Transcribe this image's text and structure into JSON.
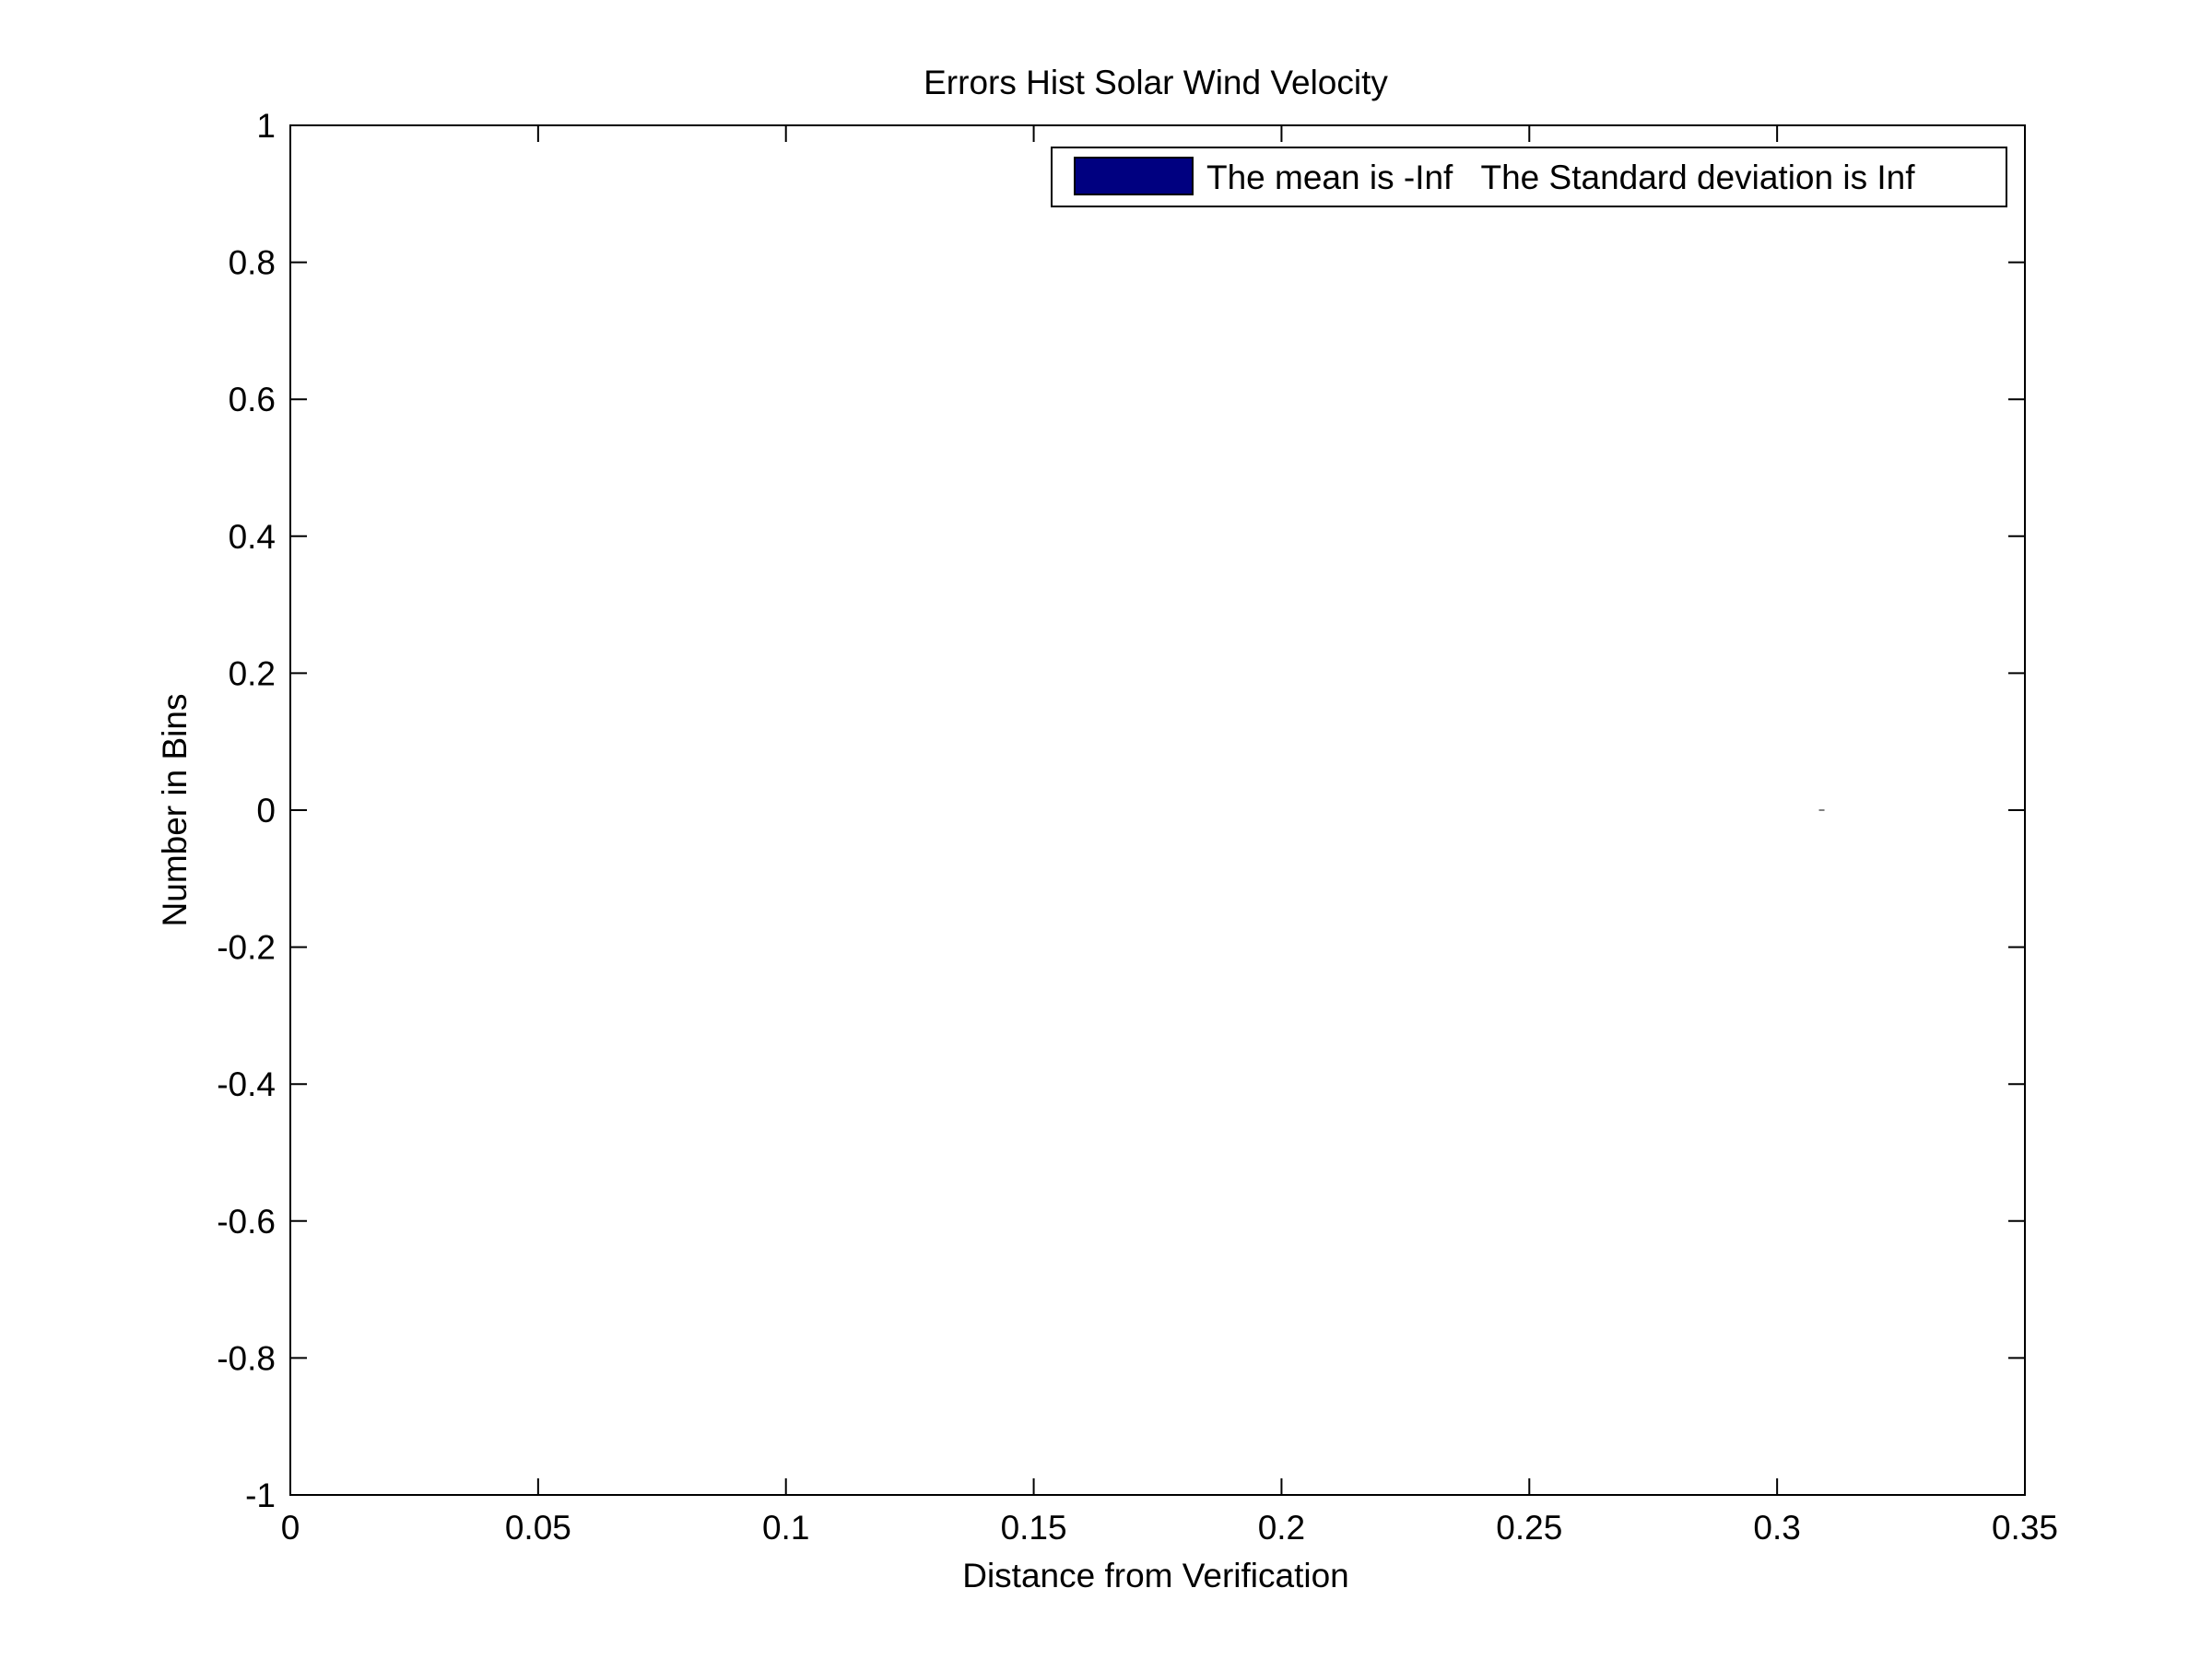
{
  "chart_data": {
    "type": "bar",
    "title": "Errors  Hist Solar Wind Velocity",
    "xlabel": "Distance from Verification",
    "ylabel": "Number in Bins",
    "xlim": [
      0,
      0.35
    ],
    "ylim": [
      -1,
      1
    ],
    "xticks": [
      0,
      0.05,
      0.1,
      0.15,
      0.2,
      0.25,
      0.3,
      0.35
    ],
    "xtick_labels": [
      "0",
      "0.05",
      "0.1",
      "0.15",
      "0.2",
      "0.25",
      "0.3",
      "0.35"
    ],
    "yticks": [
      -1,
      -0.8,
      -0.6,
      -0.4,
      -0.2,
      0,
      0.2,
      0.4,
      0.6,
      0.8,
      1
    ],
    "ytick_labels": [
      "-1",
      "-0.8",
      "-0.6",
      "-0.4",
      "-0.2",
      "0",
      "0.2",
      "0.4",
      "0.6",
      "0.8",
      "1"
    ],
    "grid": false,
    "legend_position": "top-right",
    "series": [
      {
        "name": "The mean is -Inf   The Standard deviation is Inf",
        "color": "#000080",
        "points": [
          {
            "x": 0.309,
            "y": 0
          }
        ]
      }
    ]
  }
}
